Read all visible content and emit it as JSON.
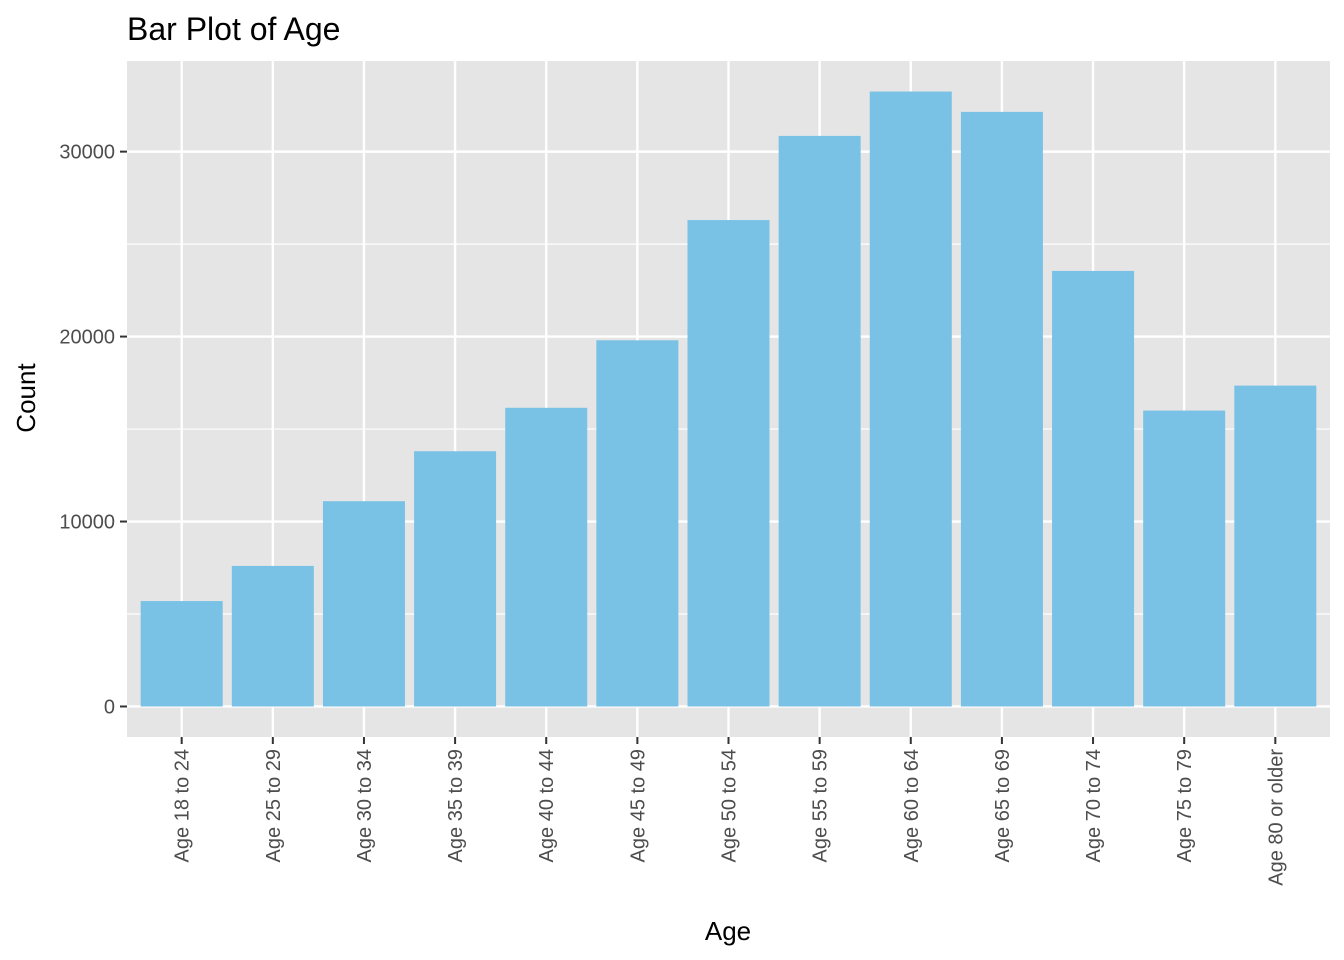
{
  "chart_data": {
    "type": "bar",
    "title": "Bar Plot of Age",
    "xlabel": "Age",
    "ylabel": "Count",
    "categories": [
      "Age 18 to 24",
      "Age 25 to 29",
      "Age 30 to 34",
      "Age 35 to 39",
      "Age 40 to 44",
      "Age 45 to 49",
      "Age 50 to 54",
      "Age 55 to 59",
      "Age 60 to 64",
      "Age 65 to 69",
      "Age 70 to 74",
      "Age 75 to 79",
      "Age 80 or older"
    ],
    "values": [
      5700,
      7600,
      11100,
      13800,
      16150,
      19800,
      26300,
      30850,
      33250,
      32150,
      23550,
      16000,
      17350
    ],
    "ylim": [
      -1650,
      34900
    ],
    "yticks": [
      0,
      10000,
      20000,
      30000
    ],
    "ytick_labels": [
      "0",
      "10000",
      "20000",
      "30000"
    ],
    "grid": true,
    "legend": "none",
    "colors": {
      "bar": "#7ac2e5",
      "panel": "#e5e5e5",
      "grid_major": "#ffffff",
      "tick_label": "#4d4d4d",
      "text": "#000000"
    }
  }
}
